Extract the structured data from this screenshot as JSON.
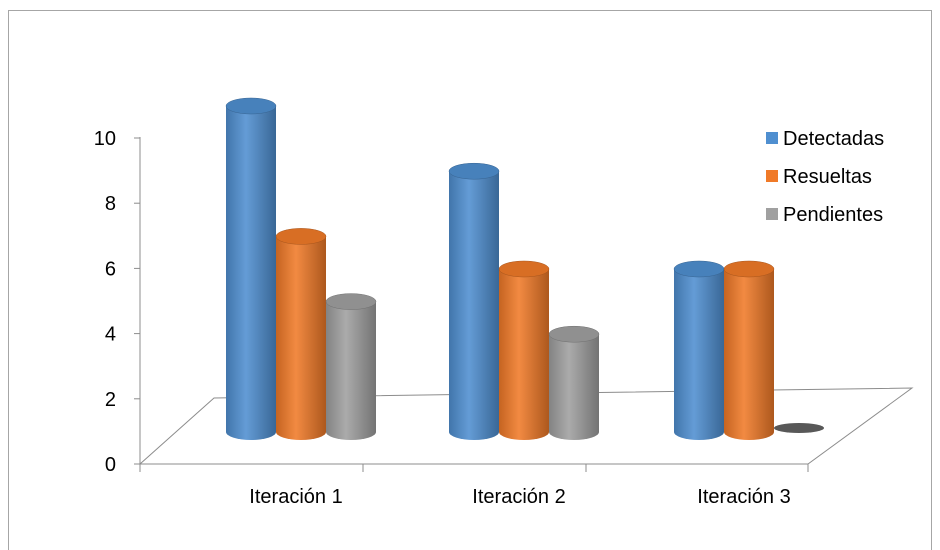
{
  "chart_data": {
    "type": "bar",
    "title": "",
    "xlabel": "",
    "ylabel": "",
    "categories": [
      "Iteración 1",
      "Iteración 2",
      "Iteración 3"
    ],
    "series": [
      {
        "name": "Detectadas",
        "values": [
          10,
          8,
          5
        ],
        "color": "#4f8fd0"
      },
      {
        "name": "Resueltas",
        "values": [
          6,
          5,
          5
        ],
        "color": "#f07a28"
      },
      {
        "name": "Pendientes",
        "values": [
          4,
          3,
          0
        ],
        "color": "#a0a0a0"
      }
    ],
    "y_ticks": [
      "0",
      "2",
      "4",
      "6",
      "8",
      "10"
    ],
    "ylim": [
      0,
      10
    ],
    "legend_position": "right",
    "grid": false,
    "style": "3d-cylinder"
  }
}
